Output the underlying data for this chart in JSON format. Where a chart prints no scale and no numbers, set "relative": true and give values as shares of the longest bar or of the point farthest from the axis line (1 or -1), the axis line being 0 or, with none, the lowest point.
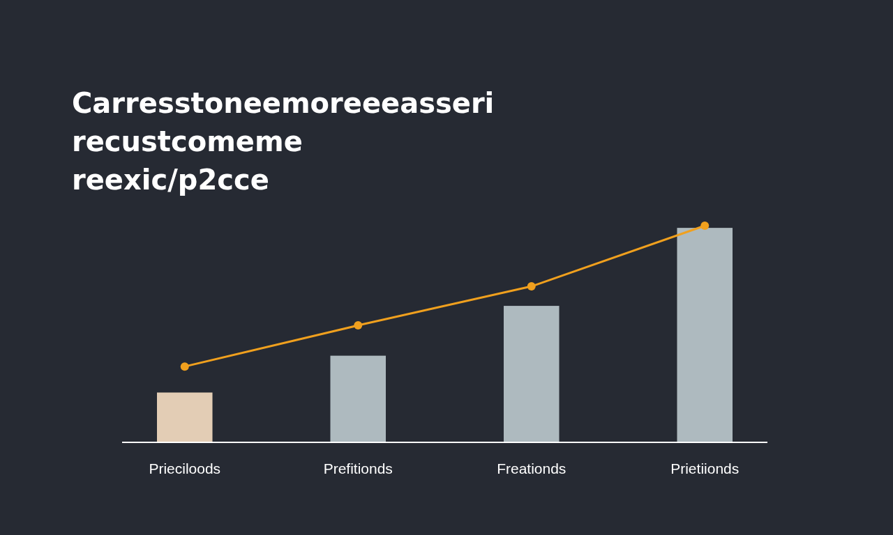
{
  "chart_data": {
    "type": "bar",
    "title": "Carresstoneemoreeeasseri\nrecustcomeme\nreexic/p2cce",
    "categories": [
      "Prieciloods",
      "Prefitionds",
      "Freationds",
      "Prietiionds"
    ],
    "relative": true,
    "series": [
      {
        "colors": [
          "#e3cdb5",
          "#aebabf",
          "#aebabf",
          "#aebabf"
        ],
        "values": [
          0.23,
          0.4,
          0.63,
          0.99
        ]
      },
      {
        "type": "line",
        "color": "#f0a01e",
        "marker": "circle",
        "values": [
          0.35,
          0.54,
          0.72,
          1
        ]
      }
    ]
  }
}
